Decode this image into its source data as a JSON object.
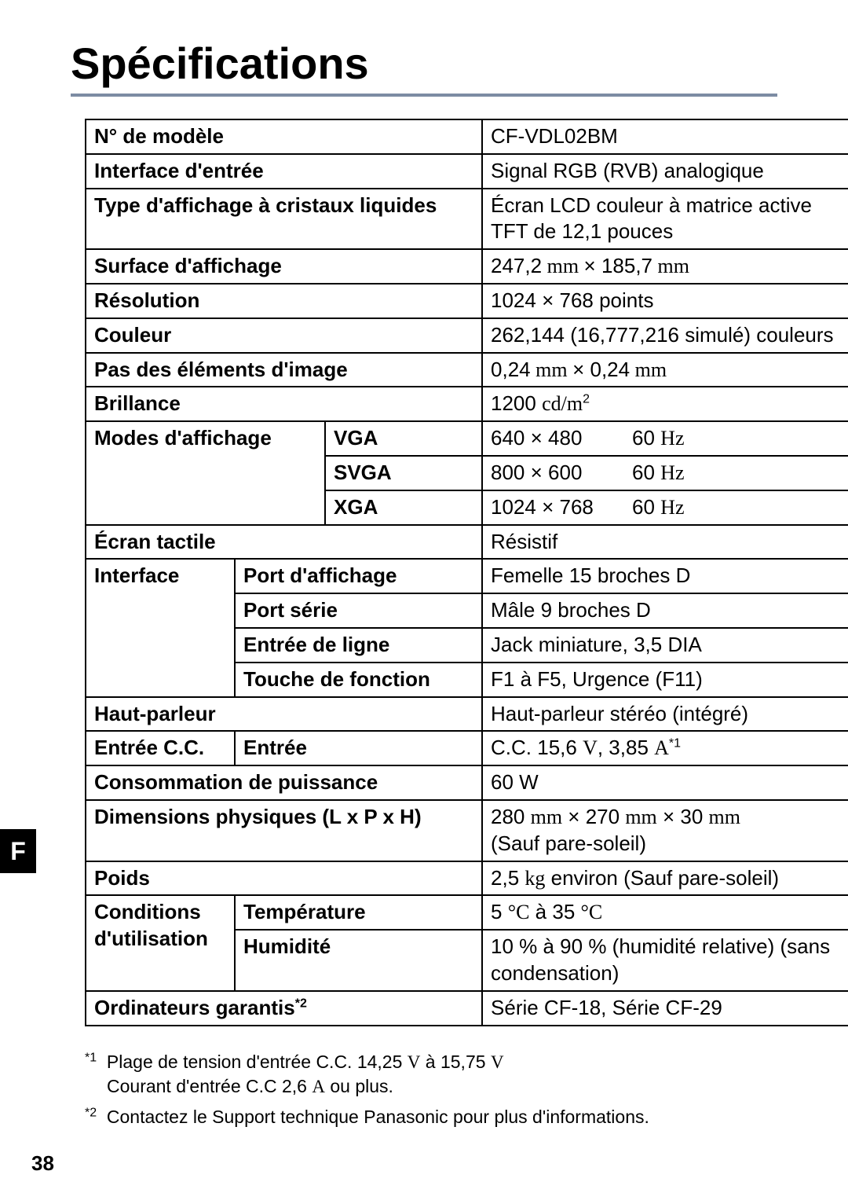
{
  "title": "Spécifications",
  "side_tab": "F",
  "page_number": "38",
  "rows": {
    "model_no_label": "N° de modèle",
    "model_no_value": "CF-VDL02BM",
    "input_if_label": "Interface d'entrée",
    "input_if_value": "Signal RGB (RVB) analogique",
    "display_type_label": "Type d'affichage à cristaux liquides",
    "display_type_value": "Écran LCD couleur à matrice active TFT de 12,1 pouces",
    "surface_label": "Surface d'affichage",
    "surface_value_a": "247,2",
    "surface_value_mm1": " mm ",
    "surface_value_x": "× 185,7",
    "surface_value_mm2": " mm",
    "resolution_label": "Résolution",
    "resolution_value": "1024 × 768 points",
    "color_label": "Couleur",
    "color_value": "262,144 (16,777,216 simulé) couleurs",
    "pitch_label": "Pas des éléments d'image",
    "pitch_value_a": "0,24",
    "pitch_mm1": " mm ",
    "pitch_value_b": "× 0,24",
    "pitch_mm2": " mm",
    "brightness_label": "Brillance",
    "brightness_value_num": "1200 ",
    "brightness_unit": "cd/m",
    "brightness_sup": "2",
    "modes_label": "Modes d'affichage",
    "vga_label": "VGA",
    "vga_res": "640 × 480",
    "vga_hz": "60 ",
    "hz_unit": "Hz",
    "svga_label": "SVGA",
    "svga_res": "800 × 600",
    "svga_hz": "60 ",
    "xga_label": "XGA",
    "xga_res": "1024 × 768",
    "xga_hz": "60 ",
    "touch_label": "Écran tactile",
    "touch_value": "Résistif",
    "interface_label": "Interface",
    "port_disp_label": "Port d'affichage",
    "port_disp_value": "Femelle 15 broches D",
    "port_serial_label": "Port série",
    "port_serial_value": "Mâle 9 broches D",
    "line_in_label": "Entrée de ligne",
    "line_in_value": "Jack miniature, 3,5 DIA",
    "func_key_label": "Touche de fonction",
    "func_key_value": "F1 à F5, Urgence (F11)",
    "speaker_label": "Haut-parleur",
    "speaker_value": "Haut-parleur stéréo (intégré)",
    "dcin_label": "Entrée C.C.",
    "dcin_sub_label": "Entrée",
    "dcin_value_a": "C.C. 15,6 ",
    "dcin_V": "V",
    "dcin_value_b": ", 3,85 ",
    "dcin_A": "A",
    "dcin_sup": "*1",
    "power_label": "Consommation de puissance",
    "power_value": "60 W",
    "dim_label": "Dimensions physiques (L x P x H)",
    "dim_value_a": "280 ",
    "dim_mm": "mm",
    "dim_value_b": " × 270 ",
    "dim_value_c": " × 30 ",
    "dim_note": "(Sauf pare-soleil)",
    "weight_label": "Poids",
    "weight_value_a": "2,5 ",
    "weight_kg": "kg",
    "weight_value_b": " environ (Sauf pare-soleil)",
    "cond_label_a": "Conditions",
    "cond_label_b": "d'utilisation",
    "temp_label": "Température",
    "temp_value_a": "5 ",
    "degC": "°C",
    "temp_value_b": " à 35 ",
    "humid_label": "Humidité",
    "humid_value": "10 % à 90 % (humidité relative) (sans condensation)",
    "guaranteed_label": "Ordinateurs garantis",
    "guaranteed_sup": "*2",
    "guaranteed_value": "Série CF-18, Série CF-29"
  },
  "footnotes": {
    "f1_sup": "*1",
    "f1_line_a": "Plage de tension d'entrée C.C. 14,25 ",
    "f1_V": "V",
    "f1_line_b": " à 15,75 ",
    "f1_line2_a": "Courant d'entrée C.C 2,6 ",
    "f1_A": "A",
    "f1_line2_b": " ou plus.",
    "f2_sup": "*2",
    "f2_text": "Contactez le Support technique Panasonic pour plus d'informations."
  },
  "columns": {
    "col1_w": 190,
    "col2_w": 115,
    "col3_w": 200,
    "col4_w": 485
  }
}
